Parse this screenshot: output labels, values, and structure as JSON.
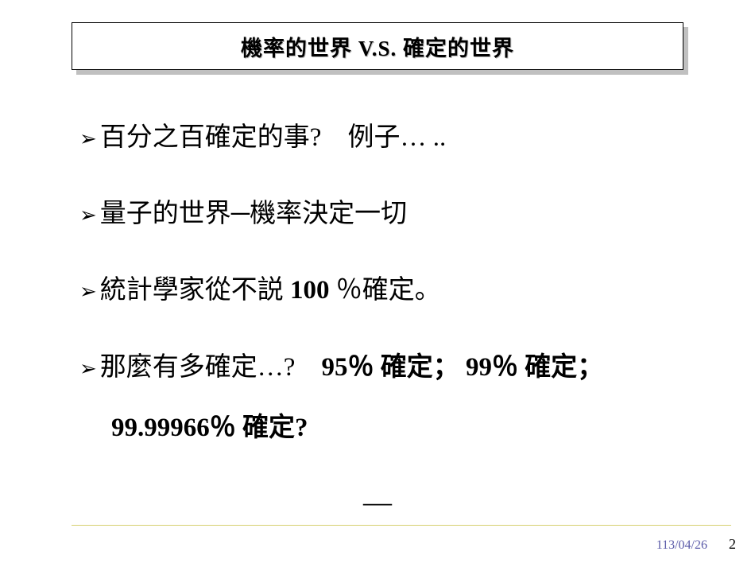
{
  "title": "機率的世界  V.S.  確定的世界",
  "bullets": [
    {
      "text": "百分之百確定的事?　例子… .."
    },
    {
      "text": "量子的世界─機率決定一切"
    },
    {
      "text_before": "統計學家從不説 ",
      "num": "100",
      "text_after": " ％確定。"
    },
    {
      "text_before": "那麼有多確定…?　",
      "n1": "95",
      "mid1": "％ 確定；",
      "n2": "99",
      "mid2": "％ 確定；"
    }
  ],
  "continuation": {
    "n": "99.99966",
    "after": "％ 確定?"
  },
  "dash": "—",
  "footer": {
    "date": "113/04/26",
    "page": "2"
  },
  "style": {
    "bullet_glyph": "➢",
    "title_fontsize": 27,
    "body_fontsize": 33,
    "footer_date_color": "#5a5aa8",
    "rule_color": "#d6d070",
    "shadow_color": "#c0c0c0",
    "text_color": "#000000",
    "background": "#ffffff"
  }
}
